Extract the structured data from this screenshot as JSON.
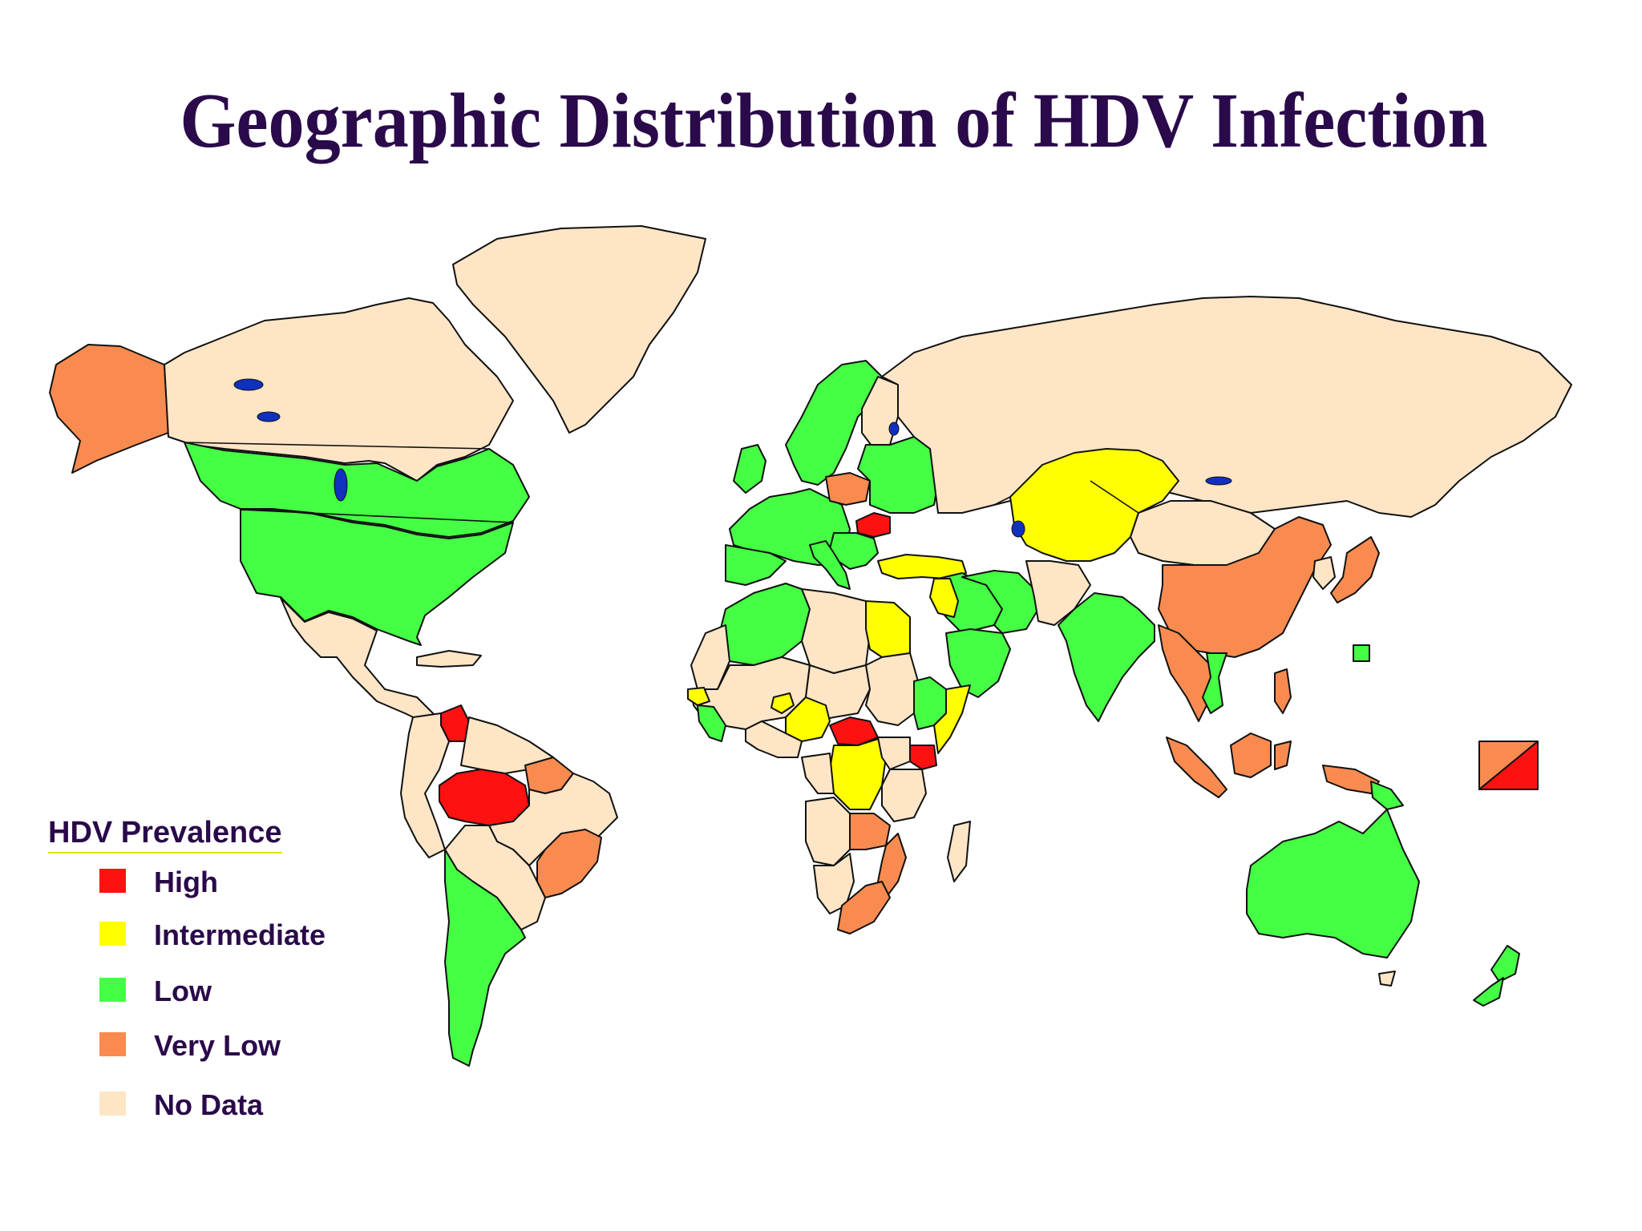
{
  "title": "Geographic Distribution of HDV Infection",
  "colors": {
    "high": "#ff1111",
    "intermediate": "#ffff00",
    "low": "#44ff44",
    "very_low": "#f98b50",
    "no_data": "#fde5c5"
  },
  "legend": {
    "title": "HDV Prevalence",
    "items": [
      {
        "label": "High",
        "category": "high"
      },
      {
        "label": "Intermediate",
        "category": "intermediate"
      },
      {
        "label": "Low",
        "category": "low"
      },
      {
        "label": "Very Low",
        "category": "very_low"
      },
      {
        "label": "No Data",
        "category": "no_data"
      }
    ]
  },
  "regions": [
    {
      "name": "alaska",
      "category": "very_low"
    },
    {
      "name": "canada-north",
      "category": "no_data"
    },
    {
      "name": "canada-south",
      "category": "low"
    },
    {
      "name": "usa",
      "category": "low"
    },
    {
      "name": "greenland",
      "category": "no_data"
    },
    {
      "name": "mexico-central-america",
      "category": "no_data"
    },
    {
      "name": "venezuela",
      "category": "high"
    },
    {
      "name": "amazon-basin",
      "category": "high"
    },
    {
      "name": "north-brazil",
      "category": "very_low"
    },
    {
      "name": "south-brazil",
      "category": "very_low"
    },
    {
      "name": "chile-argentina",
      "category": "low"
    },
    {
      "name": "europe",
      "category": "low"
    },
    {
      "name": "poland",
      "category": "very_low"
    },
    {
      "name": "romania",
      "category": "high"
    },
    {
      "name": "turkey",
      "category": "intermediate"
    },
    {
      "name": "russia",
      "category": "no_data"
    },
    {
      "name": "central-asia",
      "category": "intermediate"
    },
    {
      "name": "china",
      "category": "very_low"
    },
    {
      "name": "japan",
      "category": "very_low"
    },
    {
      "name": "india",
      "category": "low"
    },
    {
      "name": "southeast-asia",
      "category": "very_low"
    },
    {
      "name": "arabia",
      "category": "low"
    },
    {
      "name": "egypt",
      "category": "intermediate"
    },
    {
      "name": "north-africa",
      "category": "low"
    },
    {
      "name": "nigeria",
      "category": "intermediate"
    },
    {
      "name": "central-african-republic",
      "category": "high"
    },
    {
      "name": "congo",
      "category": "intermediate"
    },
    {
      "name": "kenya",
      "category": "high"
    },
    {
      "name": "ethiopia",
      "category": "low"
    },
    {
      "name": "southern-africa",
      "category": "very_low"
    },
    {
      "name": "australia",
      "category": "low"
    },
    {
      "name": "new-zealand",
      "category": "low"
    },
    {
      "name": "pacific-islands-marker",
      "category": "high"
    }
  ]
}
